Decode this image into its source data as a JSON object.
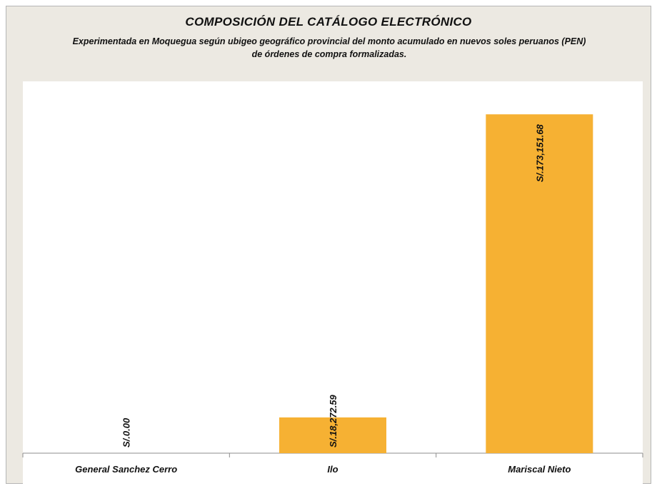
{
  "chart": {
    "title": "COMPOSICIÓN DEL CATÁLOGO  ELECTRÓNICO",
    "subtitle": "Experimentada en Moquegua según ubigeo geográfico provincial del monto acumulado en nuevos soles peruanos (PEN) de órdenes de compra formalizadas."
  },
  "colors": {
    "bar": "#f6b133",
    "axis": "#8c8c8c",
    "frame_bg": "#ece9e2",
    "plot_bg": "#ffffff"
  },
  "chart_data": {
    "type": "bar",
    "title": "COMPOSICIÓN DEL CATÁLOGO  ELECTRÓNICO",
    "subtitle": "Experimentada en Moquegua según ubigeo geográfico provincial del monto acumulado en nuevos soles peruanos (PEN) de órdenes de compra formalizadas.",
    "categories": [
      "General Sanchez Cerro",
      "Ilo",
      "Mariscal Nieto"
    ],
    "values": [
      0.0,
      18272.59,
      173151.68
    ],
    "data_labels": [
      "S/.0.00",
      "S/.18,272.59",
      "S/.173,151.68"
    ],
    "xlabel": "",
    "ylabel": "",
    "ylim": [
      0,
      190000
    ],
    "grid": false,
    "legend": "none",
    "data_label_orientation": "vertical"
  }
}
